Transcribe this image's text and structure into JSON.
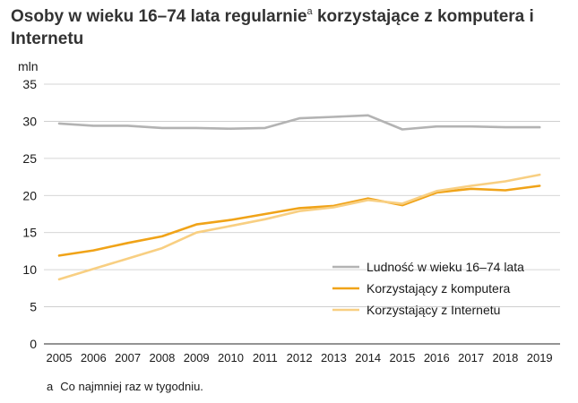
{
  "title": {
    "text_before": "Osoby w wieku 16–74 lata regularnie",
    "superscript": "a",
    "text_after": " korzystające z komputera i Internetu"
  },
  "footnote": {
    "mark": "a",
    "text": "Co najmniej raz w tygodniu."
  },
  "chart_data": {
    "type": "line",
    "ylabel": "mln",
    "xlabel": "",
    "ylim": [
      0,
      35
    ],
    "yticks": [
      0,
      5,
      10,
      15,
      20,
      25,
      30,
      35
    ],
    "grid": true,
    "legend_position": "bottom-right",
    "x": [
      "2005",
      "2006",
      "2007",
      "2008",
      "2009",
      "2010",
      "2011",
      "2012",
      "2013",
      "2014",
      "2015",
      "2016",
      "2017",
      "2018",
      "2019"
    ],
    "series": [
      {
        "name": "Ludność w wieku 16–74 lata",
        "color": "#b3b3b3",
        "values": [
          29.7,
          29.4,
          29.4,
          29.1,
          29.1,
          29.0,
          29.1,
          30.4,
          30.6,
          30.8,
          28.9,
          29.3,
          29.3,
          29.2,
          29.2
        ]
      },
      {
        "name": "Korzystający z komputera",
        "color": "#f0a318",
        "values": [
          11.9,
          12.6,
          13.6,
          14.5,
          16.1,
          16.7,
          17.5,
          18.3,
          18.6,
          19.6,
          18.7,
          20.4,
          20.9,
          20.7,
          21.3
        ]
      },
      {
        "name": "Korzystający z Internetu",
        "color": "#f8cf82",
        "values": [
          8.7,
          10.1,
          11.5,
          12.9,
          15.0,
          15.9,
          16.8,
          17.9,
          18.4,
          19.4,
          18.9,
          20.6,
          21.3,
          21.9,
          22.8
        ]
      }
    ]
  }
}
